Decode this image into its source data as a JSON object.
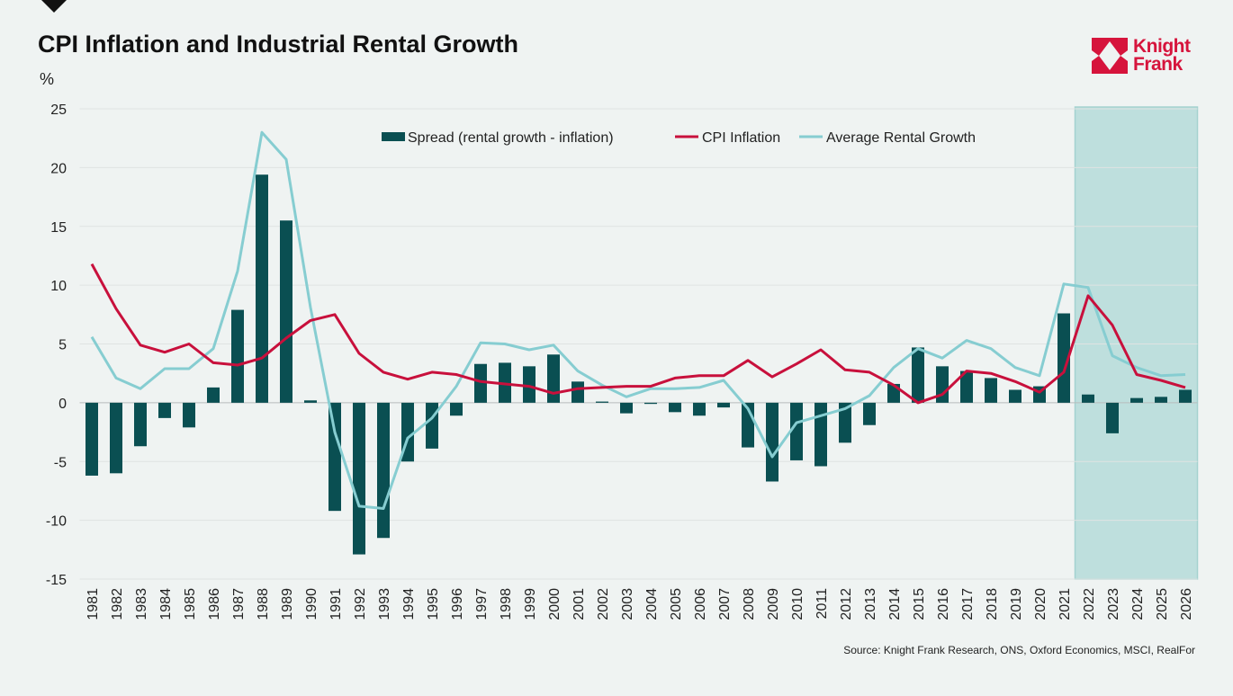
{
  "title": "CPI Inflation and Industrial Rental Growth",
  "logo": {
    "line1": "Knight",
    "line2": "Frank"
  },
  "source": "Source: Knight Frank Research, ONS, Oxford Economics, MSCI, RealFor",
  "colors": {
    "spread": "#0a4f52",
    "cpi": "#c8103c",
    "rental": "#86cdd1",
    "forecast_shade": "#b9dddb",
    "logo": "#d6143c"
  },
  "chart_data": {
    "type": "bar",
    "title": "CPI Inflation and Industrial Rental Growth",
    "ylabel": "%",
    "xlabel": "",
    "ylim": [
      -15,
      25
    ],
    "yticks": [
      -15,
      -10,
      -5,
      0,
      5,
      10,
      15,
      20,
      25
    ],
    "grid": true,
    "legend_position": "top-center",
    "forecast_range": [
      "2022",
      "2026"
    ],
    "categories": [
      "1981",
      "1982",
      "1983",
      "1984",
      "1985",
      "1986",
      "1987",
      "1988",
      "1989",
      "1990",
      "1991",
      "1992",
      "1993",
      "1994",
      "1995",
      "1996",
      "1997",
      "1998",
      "1999",
      "2000",
      "2001",
      "2002",
      "2003",
      "2004",
      "2005",
      "2006",
      "2007",
      "2008",
      "2009",
      "2010",
      "2011",
      "2012",
      "2013",
      "2014",
      "2015",
      "2016",
      "2017",
      "2018",
      "2019",
      "2020",
      "2021",
      "2022",
      "2023",
      "2024",
      "2025",
      "2026"
    ],
    "series": [
      {
        "name": "Spread (rental growth - inflation)",
        "type": "bar",
        "values": [
          -6.2,
          -6.0,
          -3.7,
          -1.3,
          -2.1,
          1.3,
          7.9,
          19.4,
          15.5,
          0.2,
          -9.2,
          -12.9,
          -11.5,
          -5.0,
          -3.9,
          -1.1,
          3.3,
          3.4,
          3.1,
          4.1,
          1.8,
          0.1,
          -0.9,
          -0.1,
          -0.8,
          -1.1,
          -0.4,
          -3.8,
          -6.7,
          -4.9,
          -5.4,
          -3.4,
          -1.9,
          1.6,
          4.7,
          3.1,
          2.7,
          2.1,
          1.1,
          1.4,
          7.6,
          0.7,
          -2.6,
          0.4,
          0.5,
          1.1
        ]
      },
      {
        "name": "CPI Inflation",
        "type": "line",
        "values": [
          11.8,
          8.0,
          4.9,
          4.3,
          5.0,
          3.4,
          3.2,
          3.8,
          5.5,
          7.0,
          7.5,
          4.2,
          2.6,
          2.0,
          2.6,
          2.4,
          1.8,
          1.6,
          1.4,
          0.8,
          1.2,
          1.3,
          1.4,
          1.4,
          2.1,
          2.3,
          2.3,
          3.6,
          2.2,
          3.3,
          4.5,
          2.8,
          2.6,
          1.5,
          0.0,
          0.7,
          2.7,
          2.5,
          1.8,
          0.9,
          2.6,
          9.1,
          6.6,
          2.4,
          1.9,
          1.3
        ]
      },
      {
        "name": "Average Rental Growth",
        "type": "line",
        "values": [
          5.6,
          2.1,
          1.2,
          2.9,
          2.9,
          4.6,
          11.2,
          23.0,
          20.7,
          8.1,
          -2.5,
          -8.8,
          -9.0,
          -3.0,
          -1.3,
          1.4,
          5.1,
          5.0,
          4.5,
          4.9,
          2.7,
          1.5,
          0.5,
          1.2,
          1.2,
          1.3,
          1.9,
          -0.5,
          -4.6,
          -1.7,
          -1.1,
          -0.5,
          0.6,
          3.0,
          4.6,
          3.8,
          5.3,
          4.6,
          3.0,
          2.3,
          10.1,
          9.8,
          4.0,
          3.0,
          2.3,
          2.4
        ]
      }
    ]
  }
}
